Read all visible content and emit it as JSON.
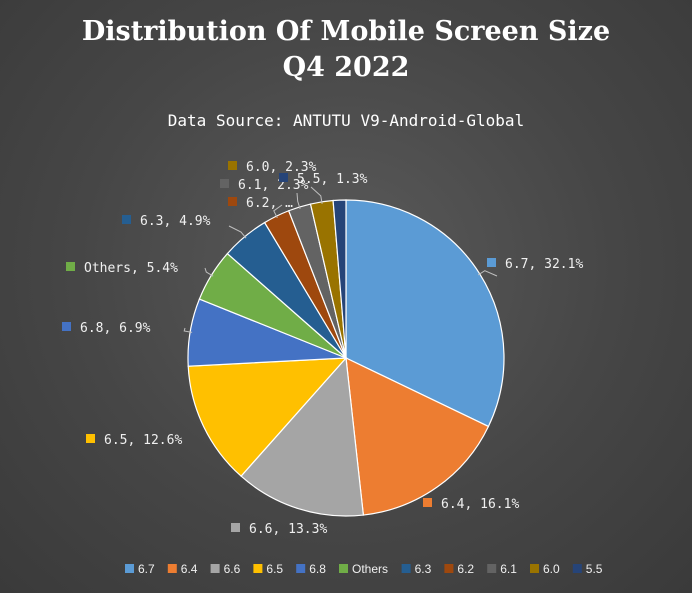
{
  "chart_data": {
    "type": "pie",
    "title": [
      "Distribution Of Mobile Screen Size",
      "Q4 2022"
    ],
    "subtitle": "Data Source: ANTUTU V9-Android-Global",
    "slices": [
      {
        "name": "6.7",
        "value": 32.1,
        "color": "#5b9bd5",
        "label": "6.7, 32.1%"
      },
      {
        "name": "6.4",
        "value": 16.1,
        "color": "#ed7d31",
        "label": "6.4, 16.1%"
      },
      {
        "name": "6.6",
        "value": 13.3,
        "color": "#a5a5a5",
        "label": "6.6, 13.3%"
      },
      {
        "name": "6.5",
        "value": 12.6,
        "color": "#ffc000",
        "label": "6.5, 12.6%"
      },
      {
        "name": "6.8",
        "value": 6.9,
        "color": "#4472c4",
        "label": "6.8, 6.9%"
      },
      {
        "name": "Others",
        "value": 5.4,
        "color": "#70ad47",
        "label": "Others, 5.4%"
      },
      {
        "name": "6.3",
        "value": 4.9,
        "color": "#255e91",
        "label": "6.3, 4.9%"
      },
      {
        "name": "6.2",
        "value": 2.7,
        "color": "#9e480e",
        "label": "6.2, …"
      },
      {
        "name": "6.1",
        "value": 2.3,
        "color": "#636363",
        "label": "6.1, 2.3%"
      },
      {
        "name": "6.0",
        "value": 2.3,
        "color": "#997300",
        "label": "6.0, 2.3%"
      },
      {
        "name": "5.5",
        "value": 1.3,
        "color": "#264478",
        "label": "5.5, 1.3%"
      }
    ],
    "legend_position": "bottom"
  }
}
